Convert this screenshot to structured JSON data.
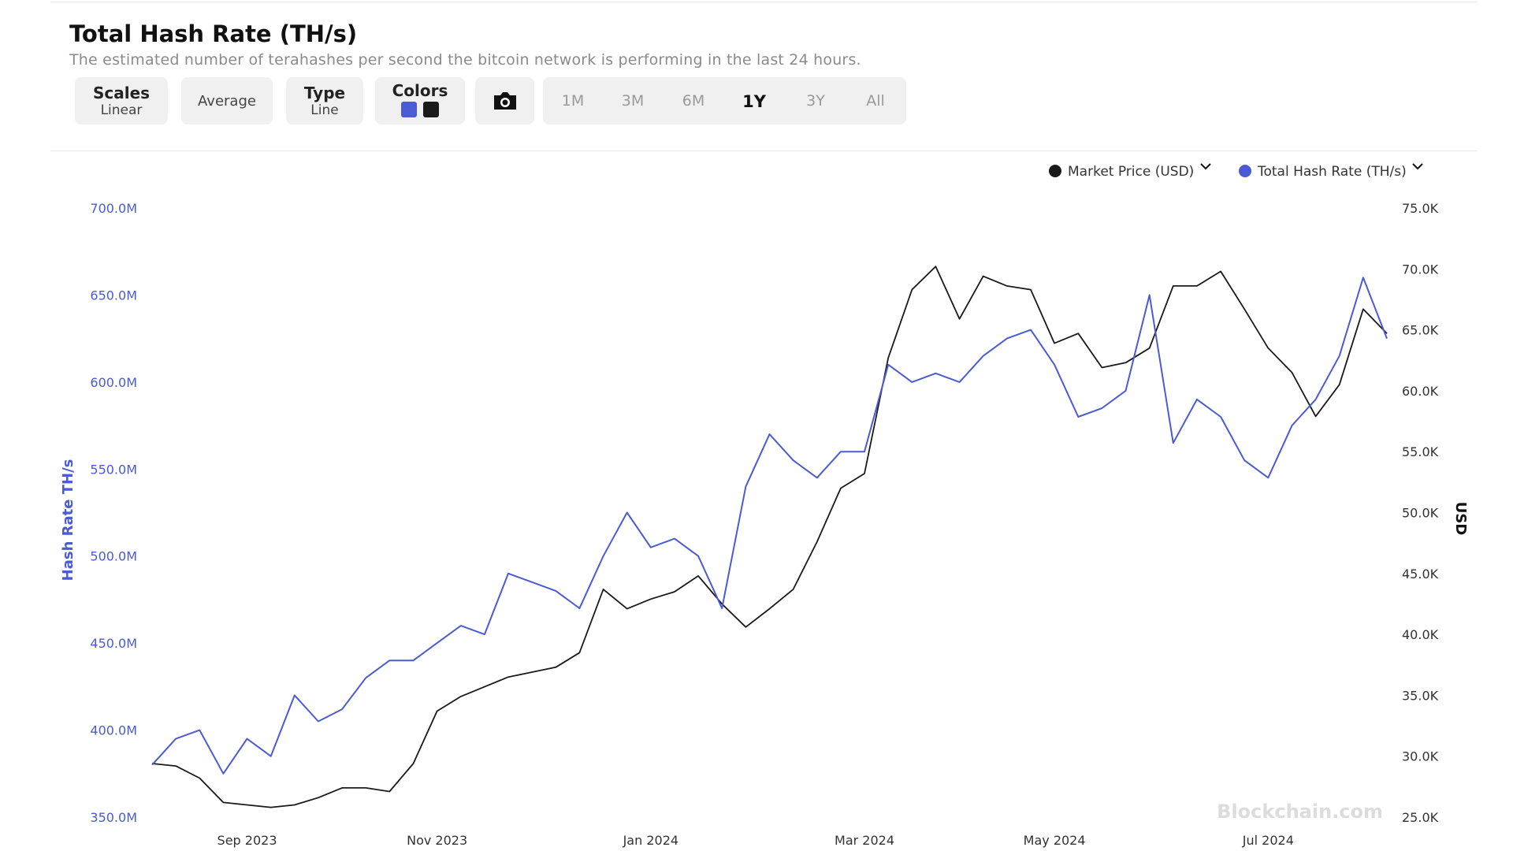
{
  "toolbar": {
    "scales": {
      "label": "Scales",
      "value": "Linear"
    },
    "average": "Average",
    "type": {
      "label": "Type",
      "value": "Line"
    },
    "colors": "Colors",
    "ranges": [
      "1M",
      "3M",
      "6M",
      "1Y",
      "3Y",
      "All"
    ],
    "active_range": 3
  },
  "watermark": "Blockchain.com",
  "chart_data": {
    "type": "line",
    "title": "Total Hash Rate (TH/s)",
    "subtitle": "The estimated number of terahashes per second the bitcoin network is performing in the last 24 hours.",
    "y_label": "Hash Rate TH/s",
    "y2_label": "USD",
    "categories": [
      null,
      null,
      null,
      null,
      "Sep 2023",
      null,
      null,
      null,
      null,
      null,
      null,
      null,
      "Nov 2023",
      null,
      null,
      null,
      null,
      null,
      null,
      null,
      null,
      "Jan 2024",
      null,
      null,
      null,
      null,
      null,
      null,
      null,
      null,
      "Mar 2024",
      null,
      null,
      null,
      null,
      null,
      null,
      null,
      "May 2024",
      null,
      null,
      null,
      null,
      null,
      null,
      null,
      null,
      "Jul 2024",
      null,
      null,
      null,
      null,
      null
    ],
    "series": [
      {
        "name": "Market Price (USD)",
        "color": "#1a1a1a",
        "axis": "y2",
        "values": [
          29.4,
          29.2,
          28.2,
          26.2,
          26.0,
          25.8,
          26.0,
          26.6,
          27.4,
          27.4,
          27.1,
          29.4,
          33.7,
          34.9,
          35.7,
          36.5,
          36.9,
          37.3,
          38.5,
          43.7,
          42.1,
          42.9,
          43.5,
          44.8,
          42.5,
          40.6,
          42.1,
          43.7,
          47.6,
          52.0,
          53.2,
          62.7,
          68.3,
          70.2,
          65.9,
          69.4,
          68.6,
          68.3,
          63.9,
          64.7,
          61.9,
          62.3,
          63.5,
          68.6,
          68.6,
          69.8,
          66.7,
          63.5,
          61.5,
          57.9,
          60.5,
          66.7,
          64.7
        ]
      },
      {
        "name": "Total Hash Rate (TH/s)",
        "color": "#4a5bd4",
        "values": [
          380,
          395,
          400,
          375,
          395,
          385,
          420,
          405,
          412,
          430,
          440,
          440,
          450,
          460,
          455,
          490,
          485,
          480,
          470,
          500,
          525,
          505,
          510,
          500,
          470,
          540,
          570,
          555,
          545,
          560,
          560,
          610,
          600,
          605,
          600,
          615,
          625,
          630,
          610,
          580,
          585,
          595,
          650,
          565,
          590,
          580,
          555,
          545,
          575,
          590,
          615,
          660,
          625
        ]
      }
    ],
    "ylim": [
      350,
      700
    ],
    "yticks": [
      {
        "value": 350,
        "label": "350.0M"
      },
      {
        "value": 400,
        "label": "400.0M"
      },
      {
        "value": 450,
        "label": "450.0M"
      },
      {
        "value": 500,
        "label": "500.0M"
      },
      {
        "value": 550,
        "label": "550.0M"
      },
      {
        "value": 600,
        "label": "600.0M"
      },
      {
        "value": 650,
        "label": "650.0M"
      },
      {
        "value": 700,
        "label": "700.0M"
      }
    ],
    "y2lim": [
      25,
      75
    ],
    "y2ticks": [
      {
        "value": 25,
        "label": "25.0K"
      },
      {
        "value": 30,
        "label": "30.0K"
      },
      {
        "value": 35,
        "label": "35.0K"
      },
      {
        "value": 40,
        "label": "40.0K"
      },
      {
        "value": 45,
        "label": "45.0K"
      },
      {
        "value": 50,
        "label": "50.0K"
      },
      {
        "value": 55,
        "label": "55.0K"
      },
      {
        "value": 60,
        "label": "60.0K"
      },
      {
        "value": 65,
        "label": "65.0K"
      },
      {
        "value": 70,
        "label": "70.0K"
      },
      {
        "value": 75,
        "label": "75.0K"
      }
    ],
    "grid": false,
    "legend": "top-right"
  }
}
